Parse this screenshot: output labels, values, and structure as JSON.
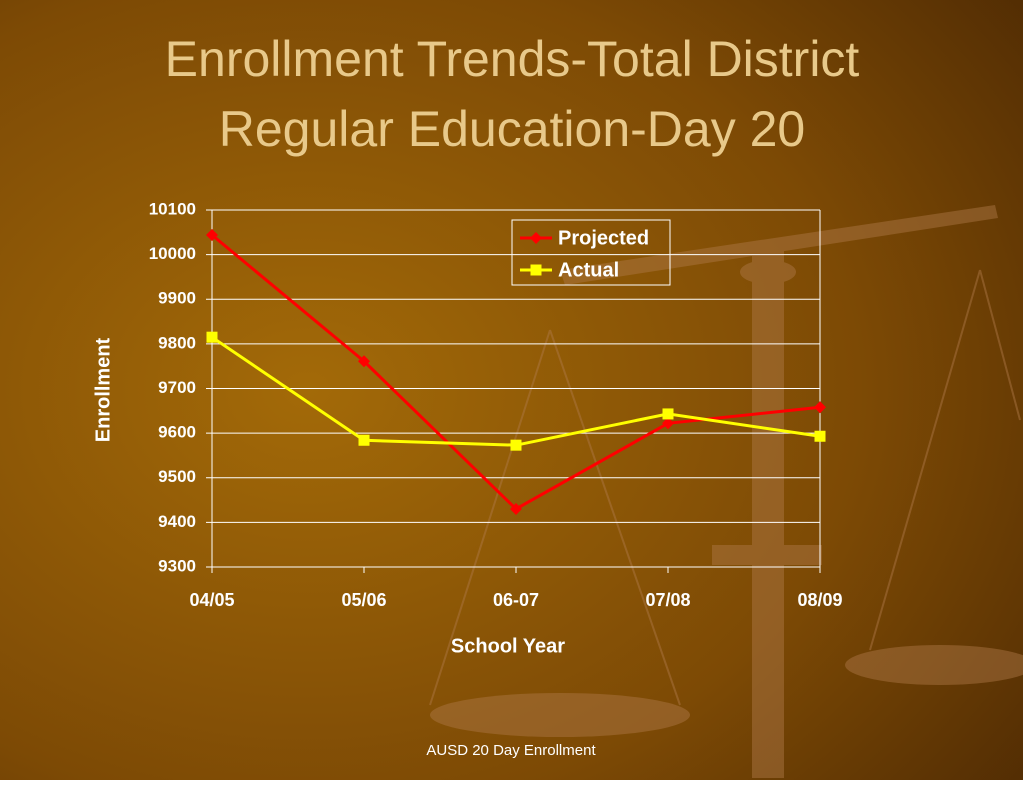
{
  "chart_data": {
    "type": "line",
    "title": [
      "Enrollment Trends-Total District",
      "Regular Education-Day 20"
    ],
    "x_label": "School Year",
    "y_label": "Enrollment",
    "categories": [
      "04/05",
      "05/06",
      "06-07",
      "07/08",
      "08/09"
    ],
    "series": [
      {
        "name": "Projected",
        "color": "#ff0000",
        "marker": "diamond",
        "values": [
          10044,
          9761,
          9430,
          9622,
          9658
        ]
      },
      {
        "name": "Actual",
        "color": "#ffff00",
        "marker": "square",
        "values": [
          9815,
          9584,
          9573,
          9643,
          9593
        ]
      }
    ],
    "ylim": [
      9300,
      10100
    ],
    "yticks": [
      9300,
      9400,
      9500,
      9600,
      9700,
      9800,
      9900,
      10000,
      10100
    ],
    "grid": true,
    "legend": "top-right"
  },
  "footer": "AUSD 20 Day Enrollment"
}
